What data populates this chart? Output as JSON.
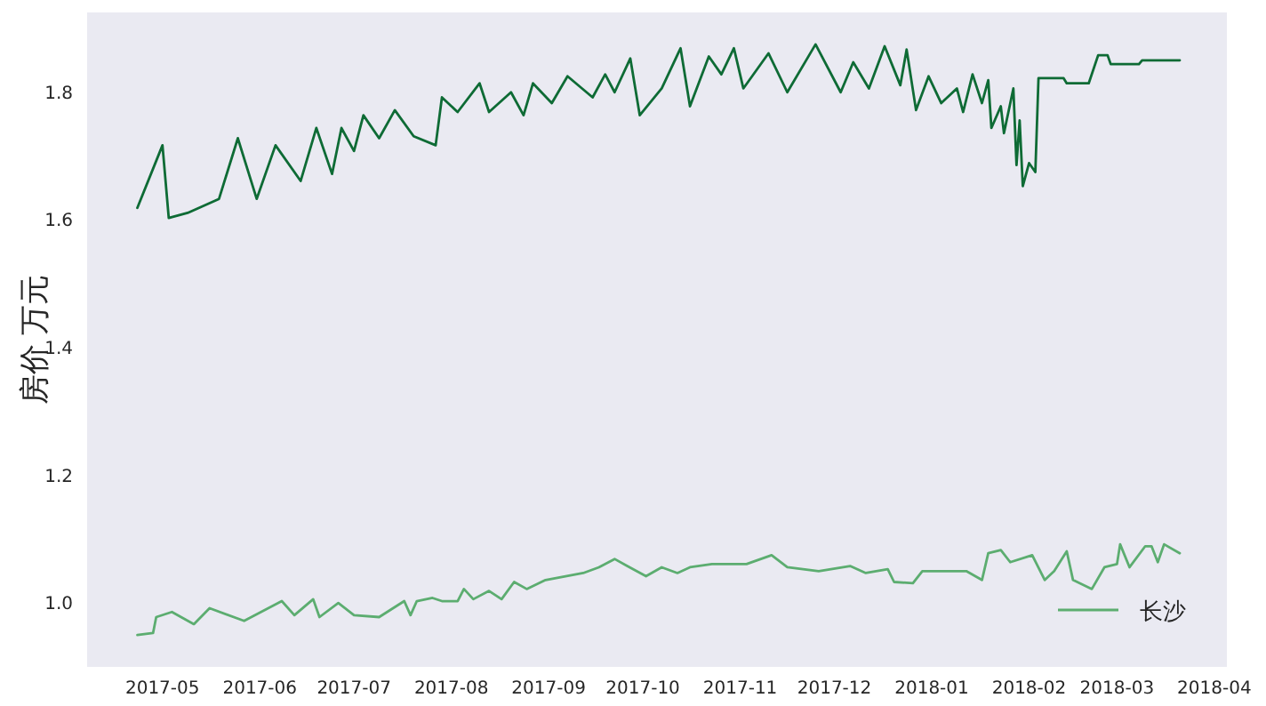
{
  "chart_data": {
    "type": "line",
    "ylabel": "房价 万元",
    "xlim": [
      "2017-04-07",
      "2018-04-05"
    ],
    "ylim": [
      0.9,
      1.925
    ],
    "xticks": [
      {
        "value": "2017-05-01",
        "label": "2017-05"
      },
      {
        "value": "2017-06-01",
        "label": "2017-06"
      },
      {
        "value": "2017-07-01",
        "label": "2017-07"
      },
      {
        "value": "2017-08-01",
        "label": "2017-08"
      },
      {
        "value": "2017-09-01",
        "label": "2017-09"
      },
      {
        "value": "2017-10-01",
        "label": "2017-10"
      },
      {
        "value": "2017-11-01",
        "label": "2017-11"
      },
      {
        "value": "2017-12-01",
        "label": "2017-12"
      },
      {
        "value": "2018-01-01",
        "label": "2018-01"
      },
      {
        "value": "2018-02-01",
        "label": "2018-02"
      },
      {
        "value": "2018-03-01",
        "label": "2018-03"
      },
      {
        "value": "2018-04-01",
        "label": "2018-04"
      }
    ],
    "yticks": [
      {
        "value": 1,
        "label": "1.0"
      },
      1.2,
      1.4,
      1.6,
      1.8
    ],
    "grid": false,
    "legend": "bottom right",
    "marker": "none",
    "line_style": "solid",
    "series": [
      {
        "name": "长沙",
        "color": "#5cad70",
        "x": [
          "2017-04-23",
          "2017-04-28",
          "2017-04-29",
          "2017-05-04",
          "2017-05-11",
          "2017-05-16",
          "2017-05-27",
          "2017-06-08",
          "2017-06-12",
          "2017-06-18",
          "2017-06-20",
          "2017-06-26",
          "2017-07-01",
          "2017-07-09",
          "2017-07-17",
          "2017-07-19",
          "2017-07-21",
          "2017-07-26",
          "2017-07-29",
          "2017-08-03",
          "2017-08-05",
          "2017-08-08",
          "2017-08-13",
          "2017-08-17",
          "2017-08-21",
          "2017-08-25",
          "2017-08-31",
          "2017-09-12",
          "2017-09-17",
          "2017-09-22",
          "2017-09-26",
          "2017-10-02",
          "2017-10-07",
          "2017-10-12",
          "2017-10-16",
          "2017-10-23",
          "2017-11-03",
          "2017-11-11",
          "2017-11-16",
          "2017-11-26",
          "2017-12-06",
          "2017-12-11",
          "2017-12-18",
          "2017-12-20",
          "2017-12-26",
          "2017-12-29",
          "2018-01-03",
          "2018-01-12",
          "2018-01-17",
          "2018-01-19",
          "2018-01-23",
          "2018-01-26",
          "2018-02-02",
          "2018-02-06",
          "2018-02-09",
          "2018-02-13",
          "2018-02-15",
          "2018-02-21",
          "2018-02-25",
          "2018-03-01",
          "2018-03-02",
          "2018-03-05",
          "2018-03-10",
          "2018-03-12",
          "2018-03-14",
          "2018-03-16",
          "2018-03-21"
        ],
        "values": [
          0.95,
          0.953,
          0.978,
          0.986,
          0.967,
          0.992,
          0.972,
          1.003,
          0.981,
          1.006,
          0.978,
          1.0,
          0.981,
          0.978,
          1.003,
          0.981,
          1.003,
          1.008,
          1.003,
          1.003,
          1.022,
          1.006,
          1.019,
          1.006,
          1.033,
          1.022,
          1.036,
          1.047,
          1.056,
          1.069,
          1.058,
          1.042,
          1.056,
          1.047,
          1.056,
          1.061,
          1.061,
          1.075,
          1.056,
          1.05,
          1.058,
          1.047,
          1.053,
          1.033,
          1.031,
          1.05,
          1.05,
          1.05,
          1.036,
          1.078,
          1.083,
          1.064,
          1.075,
          1.036,
          1.05,
          1.081,
          1.036,
          1.022,
          1.056,
          1.061,
          1.092,
          1.056,
          1.089,
          1.089,
          1.064,
          1.092,
          1.078
        ]
      },
      {
        "color": "#0e6b35",
        "x": [
          "2017-04-23",
          "2017-05-01",
          "2017-05-03",
          "2017-05-09",
          "2017-05-19",
          "2017-05-25",
          "2017-05-31",
          "2017-06-06",
          "2017-06-14",
          "2017-06-19",
          "2017-06-24",
          "2017-06-27",
          "2017-07-01",
          "2017-07-04",
          "2017-07-09",
          "2017-07-14",
          "2017-07-20",
          "2017-07-27",
          "2017-07-29",
          "2017-08-03",
          "2017-08-10",
          "2017-08-13",
          "2017-08-20",
          "2017-08-24",
          "2017-08-27",
          "2017-09-02",
          "2017-09-07",
          "2017-09-15",
          "2017-09-19",
          "2017-09-22",
          "2017-09-27",
          "2017-09-30",
          "2017-10-07",
          "2017-10-13",
          "2017-10-16",
          "2017-10-22",
          "2017-10-26",
          "2017-10-30",
          "2017-11-02",
          "2017-11-10",
          "2017-11-16",
          "2017-11-25",
          "2017-12-03",
          "2017-12-07",
          "2017-12-12",
          "2017-12-17",
          "2017-12-22",
          "2017-12-24",
          "2017-12-27",
          "2017-12-31",
          "2018-01-04",
          "2018-01-09",
          "2018-01-11",
          "2018-01-14",
          "2018-01-17",
          "2018-01-19",
          "2018-01-20",
          "2018-01-23",
          "2018-01-24",
          "2018-01-27",
          "2018-01-28",
          "2018-01-29",
          "2018-01-30",
          "2018-02-01",
          "2018-02-03",
          "2018-02-04",
          "2018-02-12",
          "2018-02-13",
          "2018-02-20",
          "2018-02-23",
          "2018-02-26",
          "2018-02-27",
          "2018-03-08",
          "2018-03-09",
          "2018-03-21"
        ],
        "values": [
          1.619,
          1.717,
          1.603,
          1.611,
          1.633,
          1.728,
          1.633,
          1.717,
          1.661,
          1.744,
          1.672,
          1.744,
          1.708,
          1.764,
          1.728,
          1.772,
          1.731,
          1.717,
          1.792,
          1.769,
          1.814,
          1.769,
          1.8,
          1.764,
          1.814,
          1.783,
          1.825,
          1.792,
          1.828,
          1.8,
          1.853,
          1.764,
          1.806,
          1.869,
          1.778,
          1.856,
          1.828,
          1.869,
          1.806,
          1.861,
          1.8,
          1.875,
          1.8,
          1.847,
          1.806,
          1.872,
          1.811,
          1.867,
          1.772,
          1.825,
          1.783,
          1.806,
          1.769,
          1.828,
          1.783,
          1.819,
          1.744,
          1.778,
          1.736,
          1.806,
          1.686,
          1.756,
          1.653,
          1.689,
          1.675,
          1.822,
          1.822,
          1.814,
          1.814,
          1.858,
          1.858,
          1.844,
          1.844,
          1.85,
          1.85
        ]
      }
    ]
  }
}
